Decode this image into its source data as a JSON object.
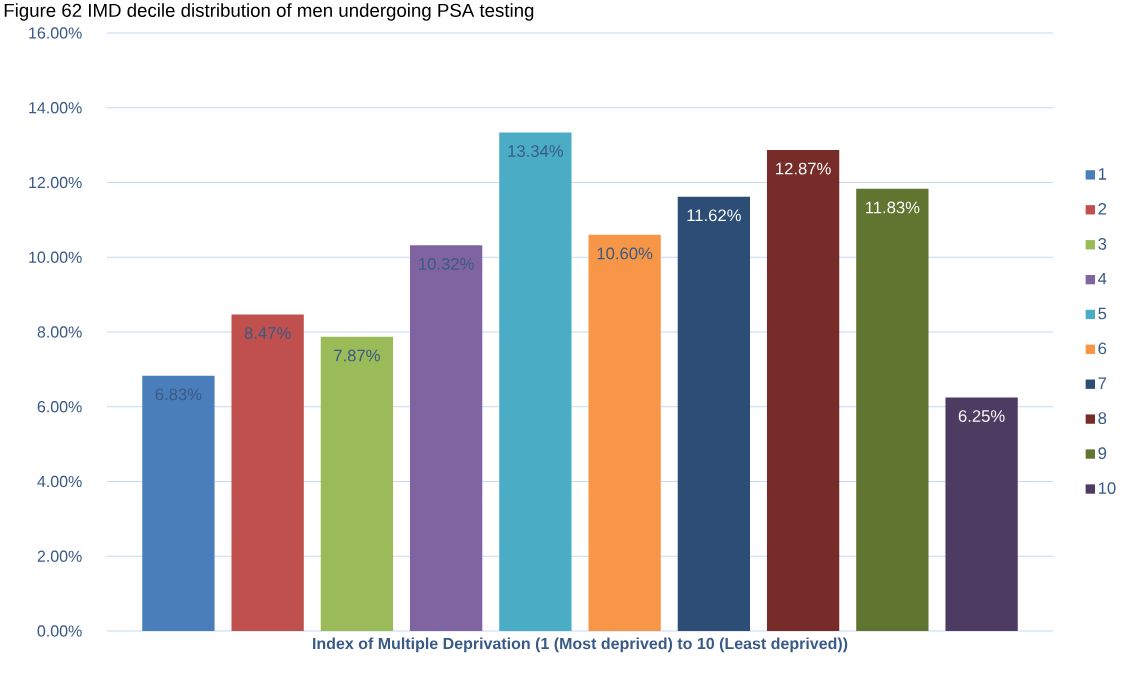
{
  "chart_data": {
    "type": "bar",
    "title": "Figure 62 IMD decile distribution of men undergoing PSA testing",
    "xlabel": "Index of Multiple Deprivation (1 (Most deprived) to 10 (Least deprived))",
    "categories": [
      null
    ],
    "series": [
      {
        "name": "1",
        "color": "#4a7ebb",
        "values": [
          6.83
        ],
        "value_labels": [
          "6.83%"
        ]
      },
      {
        "name": "2",
        "color": "#c0504d",
        "values": [
          8.47
        ],
        "value_labels": [
          "8.47%"
        ]
      },
      {
        "name": "3",
        "color": "#9bbb59",
        "values": [
          7.87
        ],
        "value_labels": [
          "7.87%"
        ]
      },
      {
        "name": "4",
        "color": "#8064a2",
        "values": [
          10.32
        ],
        "value_labels": [
          "10.32%"
        ]
      },
      {
        "name": "5",
        "color": "#4bacc6",
        "values": [
          13.34
        ],
        "value_labels": [
          "13.34%"
        ]
      },
      {
        "name": "6",
        "color": "#f79646",
        "values": [
          10.6
        ],
        "value_labels": [
          "10.60%"
        ]
      },
      {
        "name": "7",
        "color": "#2c4d75",
        "values": [
          11.62
        ],
        "value_labels": [
          "11.62%"
        ]
      },
      {
        "name": "8",
        "color": "#772c2a",
        "values": [
          12.87
        ],
        "value_labels": [
          "12.87%"
        ]
      },
      {
        "name": "9",
        "color": "#5f7530",
        "values": [
          11.83
        ],
        "value_labels": [
          "11.83%"
        ]
      },
      {
        "name": "10",
        "color": "#4d3b62",
        "values": [
          6.25
        ],
        "value_labels": [
          "6.25%"
        ]
      }
    ],
    "ylim": [
      0,
      16
    ],
    "yticks": [
      {
        "value": 0,
        "label": "0.00%"
      },
      {
        "value": 2,
        "label": "2.00%"
      },
      {
        "value": 4,
        "label": "4.00%"
      },
      {
        "value": 6,
        "label": "6.00%"
      },
      {
        "value": 8,
        "label": "8.00%"
      },
      {
        "value": 10,
        "label": "10.00%"
      },
      {
        "value": 12,
        "label": "12.00%"
      },
      {
        "value": 14,
        "label": "14.00%"
      },
      {
        "value": 16,
        "label": "16.00%"
      }
    ],
    "grid": "y",
    "legend": "right"
  }
}
